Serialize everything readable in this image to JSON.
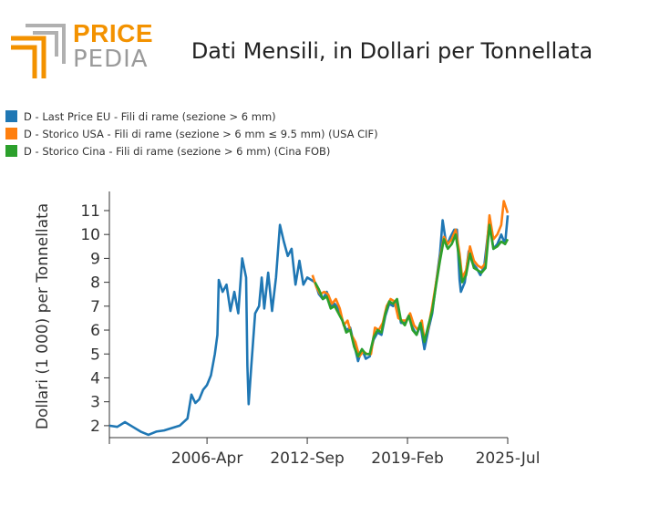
{
  "logo": {
    "word_1": "PRICE",
    "word_2": "PEDIA",
    "colors": {
      "orange": "#f39200",
      "gray": "#b0b0b0"
    }
  },
  "chart_data": {
    "type": "line",
    "title": "Dati Mensili, in Dollari per Tonnellata",
    "xlabel": "",
    "ylabel": "Dollari (1 000) per Tonnellata",
    "x_range": [
      "2000-01",
      "2025-07"
    ],
    "xticks": [
      "2006-Apr",
      "2012-Sep",
      "2019-Feb",
      "2025-Jul"
    ],
    "ylim": [
      1.5,
      11.8
    ],
    "yticks": [
      2,
      3,
      4,
      5,
      6,
      7,
      8,
      9,
      10,
      11
    ],
    "legend_position": "top-left",
    "grid": false,
    "series": [
      {
        "name": "D - Last Price EU - Fili di rame (sezione > 6 mm)",
        "color": "#1f77b4",
        "points": [
          [
            "2000-01",
            2.0
          ],
          [
            "2000-07",
            1.95
          ],
          [
            "2001-01",
            2.15
          ],
          [
            "2001-07",
            1.95
          ],
          [
            "2002-01",
            1.75
          ],
          [
            "2002-07",
            1.62
          ],
          [
            "2003-01",
            1.75
          ],
          [
            "2003-07",
            1.8
          ],
          [
            "2004-01",
            1.9
          ],
          [
            "2004-07",
            2.0
          ],
          [
            "2005-01",
            2.3
          ],
          [
            "2005-04",
            3.3
          ],
          [
            "2005-07",
            2.95
          ],
          [
            "2005-10",
            3.1
          ],
          [
            "2006-01",
            3.5
          ],
          [
            "2006-04",
            3.7
          ],
          [
            "2006-07",
            4.1
          ],
          [
            "2006-10",
            5.0
          ],
          [
            "2006-12",
            5.8
          ],
          [
            "2007-01",
            8.1
          ],
          [
            "2007-04",
            7.6
          ],
          [
            "2007-07",
            7.9
          ],
          [
            "2007-10",
            6.8
          ],
          [
            "2008-01",
            7.6
          ],
          [
            "2008-04",
            6.7
          ],
          [
            "2008-07",
            9.0
          ],
          [
            "2008-10",
            8.2
          ],
          [
            "2008-11",
            4.5
          ],
          [
            "2008-12",
            2.9
          ],
          [
            "2009-02",
            4.5
          ],
          [
            "2009-05",
            6.7
          ],
          [
            "2009-08",
            7.0
          ],
          [
            "2009-10",
            8.2
          ],
          [
            "2009-12",
            6.9
          ],
          [
            "2010-03",
            8.4
          ],
          [
            "2010-06",
            6.8
          ],
          [
            "2010-09",
            8.2
          ],
          [
            "2010-12",
            10.4
          ],
          [
            "2011-03",
            9.7
          ],
          [
            "2011-06",
            9.1
          ],
          [
            "2011-09",
            9.4
          ],
          [
            "2011-12",
            7.9
          ],
          [
            "2012-03",
            8.9
          ],
          [
            "2012-06",
            7.9
          ],
          [
            "2012-09",
            8.2
          ],
          [
            "2012-12",
            8.1
          ],
          [
            "2013-03",
            8.0
          ],
          [
            "2013-06",
            7.5
          ],
          [
            "2013-09",
            7.3
          ],
          [
            "2013-12",
            7.6
          ],
          [
            "2014-03",
            7.0
          ],
          [
            "2014-06",
            7.1
          ],
          [
            "2014-09",
            6.9
          ],
          [
            "2014-12",
            6.4
          ],
          [
            "2015-03",
            6.0
          ],
          [
            "2015-06",
            6.1
          ],
          [
            "2015-09",
            5.4
          ],
          [
            "2015-12",
            4.7
          ],
          [
            "2016-03",
            5.2
          ],
          [
            "2016-06",
            4.8
          ],
          [
            "2016-09",
            4.9
          ],
          [
            "2016-12",
            5.6
          ],
          [
            "2017-03",
            5.9
          ],
          [
            "2017-06",
            5.8
          ],
          [
            "2017-09",
            6.6
          ],
          [
            "2017-12",
            7.1
          ],
          [
            "2018-03",
            7.0
          ],
          [
            "2018-06",
            7.2
          ],
          [
            "2018-09",
            6.3
          ],
          [
            "2018-12",
            6.3
          ],
          [
            "2019-03",
            6.6
          ],
          [
            "2019-06",
            6.1
          ],
          [
            "2019-09",
            5.8
          ],
          [
            "2019-12",
            6.2
          ],
          [
            "2020-03",
            5.2
          ],
          [
            "2020-06",
            6.0
          ],
          [
            "2020-09",
            6.7
          ],
          [
            "2020-12",
            8.0
          ],
          [
            "2021-03",
            9.2
          ],
          [
            "2021-05",
            10.6
          ],
          [
            "2021-08",
            9.5
          ],
          [
            "2021-11",
            9.9
          ],
          [
            "2022-02",
            10.2
          ],
          [
            "2022-04",
            10.2
          ],
          [
            "2022-06",
            8.1
          ],
          [
            "2022-07",
            7.6
          ],
          [
            "2022-10",
            8.0
          ],
          [
            "2023-01",
            9.3
          ],
          [
            "2023-04",
            8.8
          ],
          [
            "2023-07",
            8.6
          ],
          [
            "2023-10",
            8.3
          ],
          [
            "2024-01",
            8.7
          ],
          [
            "2024-05",
            10.6
          ],
          [
            "2024-08",
            9.4
          ],
          [
            "2024-11",
            9.6
          ],
          [
            "2025-02",
            10.0
          ],
          [
            "2025-05",
            9.6
          ],
          [
            "2025-07",
            10.8
          ]
        ]
      },
      {
        "name": "D - Storico USA - Fili di rame (sezione > 6 mm ≤ 9.5 mm) (USA CIF)",
        "color": "#ff7f0e",
        "points": [
          [
            "2013-01",
            8.3
          ],
          [
            "2013-04",
            7.8
          ],
          [
            "2013-07",
            7.5
          ],
          [
            "2013-10",
            7.6
          ],
          [
            "2014-01",
            7.5
          ],
          [
            "2014-04",
            7.1
          ],
          [
            "2014-07",
            7.3
          ],
          [
            "2014-10",
            6.9
          ],
          [
            "2015-01",
            6.2
          ],
          [
            "2015-04",
            6.4
          ],
          [
            "2015-07",
            5.8
          ],
          [
            "2015-10",
            5.5
          ],
          [
            "2016-01",
            4.9
          ],
          [
            "2016-04",
            5.1
          ],
          [
            "2016-07",
            5.0
          ],
          [
            "2016-10",
            5.0
          ],
          [
            "2017-01",
            6.1
          ],
          [
            "2017-04",
            6.0
          ],
          [
            "2017-07",
            6.3
          ],
          [
            "2017-10",
            7.0
          ],
          [
            "2018-01",
            7.3
          ],
          [
            "2018-04",
            7.2
          ],
          [
            "2018-07",
            6.5
          ],
          [
            "2018-10",
            6.4
          ],
          [
            "2019-01",
            6.4
          ],
          [
            "2019-04",
            6.7
          ],
          [
            "2019-07",
            6.2
          ],
          [
            "2019-10",
            6.0
          ],
          [
            "2020-01",
            6.4
          ],
          [
            "2020-03",
            5.6
          ],
          [
            "2020-06",
            6.1
          ],
          [
            "2020-09",
            7.0
          ],
          [
            "2020-12",
            8.0
          ],
          [
            "2021-03",
            9.0
          ],
          [
            "2021-06",
            9.9
          ],
          [
            "2021-09",
            9.6
          ],
          [
            "2021-12",
            9.8
          ],
          [
            "2022-03",
            10.2
          ],
          [
            "2022-06",
            9.2
          ],
          [
            "2022-08",
            8.2
          ],
          [
            "2022-11",
            8.5
          ],
          [
            "2023-02",
            9.5
          ],
          [
            "2023-05",
            8.9
          ],
          [
            "2023-08",
            8.7
          ],
          [
            "2023-11",
            8.6
          ],
          [
            "2024-02",
            8.8
          ],
          [
            "2024-05",
            10.8
          ],
          [
            "2024-08",
            9.8
          ],
          [
            "2024-11",
            10.0
          ],
          [
            "2025-02",
            10.4
          ],
          [
            "2025-04",
            11.4
          ],
          [
            "2025-07",
            10.9
          ]
        ]
      },
      {
        "name": "D - Storico Cina - Fili di rame (sezione > 6 mm) (Cina FOB)",
        "color": "#2ca02c",
        "points": [
          [
            "2013-03",
            8.0
          ],
          [
            "2013-06",
            7.7
          ],
          [
            "2013-09",
            7.3
          ],
          [
            "2013-12",
            7.4
          ],
          [
            "2014-03",
            6.9
          ],
          [
            "2014-06",
            7.0
          ],
          [
            "2014-09",
            6.7
          ],
          [
            "2014-12",
            6.4
          ],
          [
            "2015-03",
            5.9
          ],
          [
            "2015-06",
            6.0
          ],
          [
            "2015-09",
            5.3
          ],
          [
            "2015-12",
            4.9
          ],
          [
            "2016-03",
            5.2
          ],
          [
            "2016-06",
            5.0
          ],
          [
            "2016-09",
            5.0
          ],
          [
            "2016-12",
            5.7
          ],
          [
            "2017-03",
            6.0
          ],
          [
            "2017-06",
            5.9
          ],
          [
            "2017-09",
            6.7
          ],
          [
            "2017-12",
            7.2
          ],
          [
            "2018-03",
            7.1
          ],
          [
            "2018-06",
            7.3
          ],
          [
            "2018-09",
            6.4
          ],
          [
            "2018-12",
            6.2
          ],
          [
            "2019-03",
            6.6
          ],
          [
            "2019-06",
            6.0
          ],
          [
            "2019-09",
            5.8
          ],
          [
            "2019-12",
            6.3
          ],
          [
            "2020-03",
            5.5
          ],
          [
            "2020-06",
            6.2
          ],
          [
            "2020-09",
            6.8
          ],
          [
            "2020-12",
            7.9
          ],
          [
            "2021-03",
            8.9
          ],
          [
            "2021-06",
            9.8
          ],
          [
            "2021-09",
            9.4
          ],
          [
            "2021-12",
            9.6
          ],
          [
            "2022-03",
            10.0
          ],
          [
            "2022-06",
            8.9
          ],
          [
            "2022-08",
            8.0
          ],
          [
            "2022-11",
            8.3
          ],
          [
            "2023-02",
            9.2
          ],
          [
            "2023-05",
            8.6
          ],
          [
            "2023-08",
            8.5
          ],
          [
            "2023-11",
            8.4
          ],
          [
            "2024-02",
            8.6
          ],
          [
            "2024-05",
            10.4
          ],
          [
            "2024-08",
            9.4
          ],
          [
            "2024-11",
            9.5
          ],
          [
            "2025-02",
            9.7
          ],
          [
            "2025-05",
            9.6
          ],
          [
            "2025-07",
            9.8
          ]
        ]
      }
    ]
  }
}
